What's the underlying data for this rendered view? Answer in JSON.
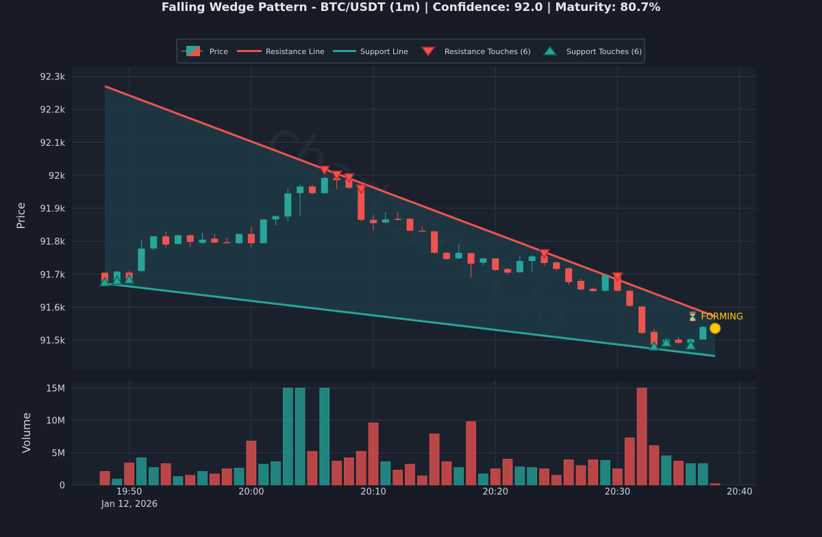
{
  "title": "Falling Wedge Pattern - BTC/USDT (1m) | Confidence: 92.0 | Maturity: 80.7%",
  "watermark": "chartscout.io",
  "colors": {
    "background": "#161b26",
    "plot_bg": "#1b202d",
    "grid": "#2d3443",
    "up": "#26a69a",
    "down": "#ef5350",
    "resistance": "#ef5350",
    "support": "#26a69a",
    "wedge_fill": "#1d3a45",
    "text": "#d1d4dc",
    "forming": "#ffcc00"
  },
  "legend": {
    "price": "Price",
    "resistance_line": "Resistance Line",
    "support_line": "Support Line",
    "resistance_touches": "Resistance Touches (6)",
    "support_touches": "Support Touches (6)"
  },
  "forming_label": "⏳ FORMING",
  "chart_data": [
    {
      "type": "candlestick",
      "ylabel": "Price",
      "ylim": [
        91410,
        92330
      ],
      "yticks": [
        91500,
        91600,
        91700,
        91800,
        91900,
        92000,
        92100,
        92200,
        92300
      ],
      "ytick_labels": [
        "91.5k",
        "91.6k",
        "91.7k",
        "91.8k",
        "91.9k",
        "92k",
        "92.1k",
        "92.2k",
        "92.3k"
      ],
      "xlim": [
        -9.6,
        44.5
      ],
      "xticks": [
        0,
        10,
        20,
        30,
        40,
        50
      ],
      "xtick_labels": [
        "19:50",
        "20:00",
        "20:10",
        "20:20",
        "20:30",
        "20:40"
      ],
      "xtick_sublabel": "Jan 12, 2026",
      "x_unit": "minutes after 19:48",
      "candles": [
        {
          "x": 0,
          "o": 91705,
          "h": 91705,
          "l": 91672,
          "c": 91675
        },
        {
          "x": 1,
          "o": 91682,
          "h": 91710,
          "l": 91678,
          "c": 91708
        },
        {
          "x": 2,
          "o": 91705,
          "h": 91710,
          "l": 91681,
          "c": 91683
        },
        {
          "x": 3,
          "o": 91710,
          "h": 91805,
          "l": 91705,
          "c": 91778
        },
        {
          "x": 4,
          "o": 91778,
          "h": 91816,
          "l": 91772,
          "c": 91815
        },
        {
          "x": 5,
          "o": 91815,
          "h": 91830,
          "l": 91780,
          "c": 91790
        },
        {
          "x": 6,
          "o": 91792,
          "h": 91820,
          "l": 91790,
          "c": 91818
        },
        {
          "x": 7,
          "o": 91818,
          "h": 91820,
          "l": 91782,
          "c": 91798
        },
        {
          "x": 8,
          "o": 91795,
          "h": 91826,
          "l": 91793,
          "c": 91805
        },
        {
          "x": 9,
          "o": 91808,
          "h": 91822,
          "l": 91795,
          "c": 91796
        },
        {
          "x": 10,
          "o": 91797,
          "h": 91812,
          "l": 91792,
          "c": 91795
        },
        {
          "x": 11,
          "o": 91794,
          "h": 91823,
          "l": 91792,
          "c": 91822
        },
        {
          "x": 12,
          "o": 91822,
          "h": 91845,
          "l": 91782,
          "c": 91794
        },
        {
          "x": 13,
          "o": 91794,
          "h": 91868,
          "l": 91794,
          "c": 91866
        },
        {
          "x": 14,
          "o": 91866,
          "h": 91878,
          "l": 91849,
          "c": 91876
        },
        {
          "x": 15,
          "o": 91875,
          "h": 91960,
          "l": 91860,
          "c": 91945
        },
        {
          "x": 16,
          "o": 91946,
          "h": 91972,
          "l": 91878,
          "c": 91966
        },
        {
          "x": 17,
          "o": 91966,
          "h": 91972,
          "l": 91942,
          "c": 91946
        },
        {
          "x": 18,
          "o": 91946,
          "h": 91995,
          "l": 91945,
          "c": 91992
        },
        {
          "x": 19,
          "o": 91992,
          "h": 91995,
          "l": 91958,
          "c": 91985
        },
        {
          "x": 20,
          "o": 91988,
          "h": 91990,
          "l": 91958,
          "c": 91962
        },
        {
          "x": 21,
          "o": 91963,
          "h": 91972,
          "l": 91860,
          "c": 91865
        },
        {
          "x": 22,
          "o": 91865,
          "h": 91880,
          "l": 91832,
          "c": 91855
        },
        {
          "x": 23,
          "o": 91857,
          "h": 91888,
          "l": 91855,
          "c": 91866
        },
        {
          "x": 24,
          "o": 91868,
          "h": 91889,
          "l": 91862,
          "c": 91865
        },
        {
          "x": 25,
          "o": 91868,
          "h": 91870,
          "l": 91830,
          "c": 91832
        },
        {
          "x": 26,
          "o": 91832,
          "h": 91845,
          "l": 91830,
          "c": 91831
        },
        {
          "x": 27,
          "o": 91830,
          "h": 91832,
          "l": 91762,
          "c": 91765
        },
        {
          "x": 28,
          "o": 91765,
          "h": 91768,
          "l": 91744,
          "c": 91746
        },
        {
          "x": 29,
          "o": 91748,
          "h": 91792,
          "l": 91745,
          "c": 91765
        },
        {
          "x": 30,
          "o": 91764,
          "h": 91765,
          "l": 91690,
          "c": 91732
        },
        {
          "x": 31,
          "o": 91735,
          "h": 91748,
          "l": 91725,
          "c": 91748
        },
        {
          "x": 32,
          "o": 91748,
          "h": 91748,
          "l": 91710,
          "c": 91713
        },
        {
          "x": 33,
          "o": 91716,
          "h": 91718,
          "l": 91698,
          "c": 91705
        },
        {
          "x": 34,
          "o": 91706,
          "h": 91755,
          "l": 91704,
          "c": 91740
        },
        {
          "x": 35,
          "o": 91740,
          "h": 91758,
          "l": 91708,
          "c": 91754
        },
        {
          "x": 36,
          "o": 91756,
          "h": 91762,
          "l": 91728,
          "c": 91734
        },
        {
          "x": 37,
          "o": 91736,
          "h": 91738,
          "l": 91712,
          "c": 91716
        },
        {
          "x": 38,
          "o": 91718,
          "h": 91720,
          "l": 91668,
          "c": 91676
        },
        {
          "x": 39,
          "o": 91680,
          "h": 91686,
          "l": 91652,
          "c": 91654
        },
        {
          "x": 40,
          "o": 91656,
          "h": 91660,
          "l": 91648,
          "c": 91649
        },
        {
          "x": 41,
          "o": 91650,
          "h": 91702,
          "l": 91648,
          "c": 91698
        },
        {
          "x": 42,
          "o": 91698,
          "h": 91700,
          "l": 91648,
          "c": 91650
        },
        {
          "x": 43,
          "o": 91650,
          "h": 91652,
          "l": 91602,
          "c": 91604
        },
        {
          "x": 44,
          "o": 91602,
          "h": 91604,
          "l": 91518,
          "c": 91522
        },
        {
          "x": 45,
          "o": 91525,
          "h": 91534,
          "l": 91483,
          "c": 91486
        },
        {
          "x": 46,
          "o": 91490,
          "h": 91505,
          "l": 91488,
          "c": 91502
        },
        {
          "x": 47,
          "o": 91502,
          "h": 91510,
          "l": 91490,
          "c": 91492
        },
        {
          "x": 48,
          "o": 91492,
          "h": 91505,
          "l": 91490,
          "c": 91503
        },
        {
          "x": 49,
          "o": 91502,
          "h": 91542,
          "l": 91502,
          "c": 91540
        }
      ],
      "resistance_line": [
        {
          "x": 0,
          "y": 92270
        },
        {
          "x": 50,
          "y": 91572
        }
      ],
      "support_line": [
        {
          "x": 0,
          "y": 91672
        },
        {
          "x": 50,
          "y": 91452
        }
      ],
      "resistance_touches": [
        {
          "x": 18,
          "y": 92015
        },
        {
          "x": 19,
          "y": 92000
        },
        {
          "x": 20,
          "y": 91992
        },
        {
          "x": 21,
          "y": 91958
        },
        {
          "x": 36,
          "y": 91762
        },
        {
          "x": 42,
          "y": 91692
        }
      ],
      "support_touches": [
        {
          "x": 0,
          "y": 91675
        },
        {
          "x": 1,
          "y": 91680
        },
        {
          "x": 2,
          "y": 91683
        },
        {
          "x": 45,
          "y": 91480
        },
        {
          "x": 46,
          "y": 91492
        },
        {
          "x": 48,
          "y": 91483
        }
      ],
      "forming_point": {
        "x": 50,
        "y": 91536
      }
    },
    {
      "type": "bar",
      "ylabel": "Volume",
      "ylim": [
        0,
        16000000
      ],
      "yticks": [
        0,
        5000000,
        10000000,
        15000000
      ],
      "ytick_labels": [
        "0",
        "5M",
        "10M",
        "15M"
      ],
      "volumes": [
        2100000,
        900000,
        3400000,
        4200000,
        2700000,
        3300000,
        1300000,
        1500000,
        2100000,
        1700000,
        2500000,
        2600000,
        6800000,
        3200000,
        3600000,
        15000000,
        15000000,
        5200000,
        15000000,
        3700000,
        4200000,
        5200000,
        9600000,
        3600000,
        2300000,
        3200000,
        1400000,
        7900000,
        3600000,
        2700000,
        9800000,
        1700000,
        2500000,
        4000000,
        2800000,
        2700000,
        2500000,
        1500000,
        3900000,
        3000000,
        3900000,
        3800000,
        2500000,
        7300000,
        15000000,
        6100000,
        4500000,
        3700000,
        3300000,
        3300000,
        200000
      ]
    }
  ]
}
